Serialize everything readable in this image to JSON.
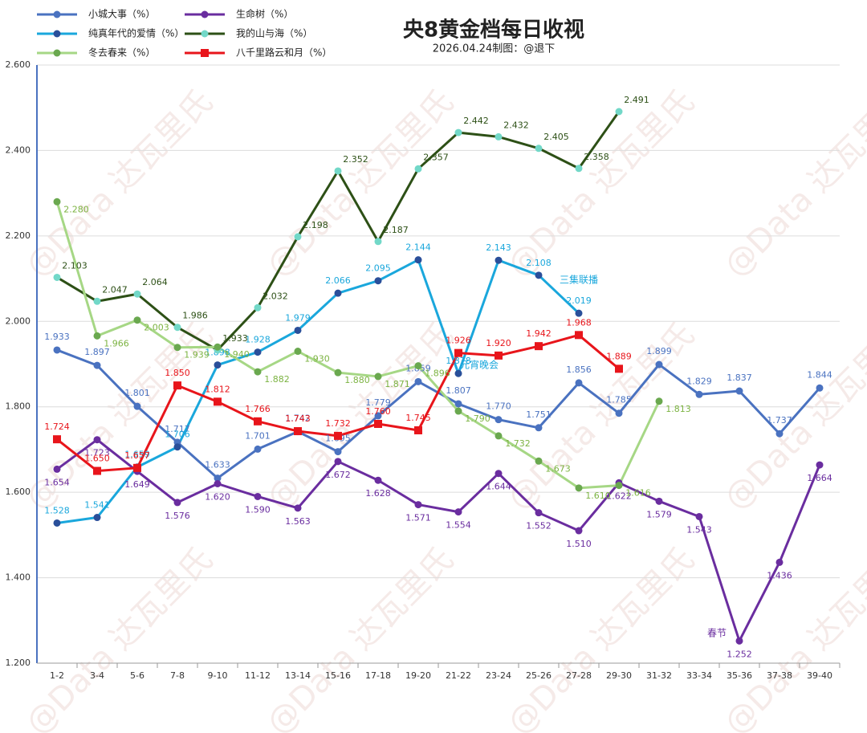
{
  "chart_data": {
    "type": "line",
    "title": "央8黄金档每日收视",
    "subtitle": "2026.04.24制图：@退下",
    "watermark": "@Data 达瓦里氏",
    "categories": [
      "1-2",
      "3-4",
      "5-6",
      "7-8",
      "9-10",
      "11-12",
      "13-14",
      "15-16",
      "17-18",
      "19-20",
      "21-22",
      "23-24",
      "25-26",
      "27-28",
      "29-30",
      "31-32",
      "33-34",
      "35-36",
      "37-38",
      "39-40"
    ],
    "ylim": [
      1.2,
      2.6
    ],
    "yticks": [
      {
        "value": 1.2,
        "label": "1.200"
      },
      {
        "value": 1.4,
        "label": "1.400"
      },
      {
        "value": 1.6,
        "label": "1.600"
      },
      {
        "value": 1.8,
        "label": "1.800"
      },
      {
        "value": 2.0,
        "label": "2.000"
      },
      {
        "value": 2.2,
        "label": "2.200"
      },
      {
        "value": 2.4,
        "label": "2.400"
      },
      {
        "value": 2.6,
        "label": "2.600"
      }
    ],
    "grid": true,
    "legend": "top-left",
    "series": [
      {
        "name": "小城大事（%）",
        "color": "#4a72c0",
        "marker_color": "#4a72c0",
        "marker": "circle",
        "values": [
          1.933,
          1.897,
          1.801,
          1.717,
          1.633,
          1.701,
          1.742,
          1.695,
          1.779,
          1.859,
          1.807,
          1.77,
          1.751,
          1.856,
          1.785,
          1.899,
          1.829,
          1.837,
          1.737,
          1.844
        ],
        "value_labels": [
          "1.933",
          "1.897",
          "1.801",
          "1.717",
          "1.633",
          "1.701",
          "1.742",
          "1.695",
          "1.779",
          "1.859",
          "1.807",
          "1.770",
          "1.751",
          "1.856",
          "1.785",
          "1.899",
          "1.829",
          "1.837",
          "1.737",
          "1.844"
        ]
      },
      {
        "name": "生命树（%）",
        "color": "#6a2d9f",
        "marker_color": "#6a2d9f",
        "marker": "circle",
        "values": [
          1.654,
          1.723,
          1.649,
          1.576,
          1.62,
          1.59,
          1.563,
          1.672,
          1.628,
          1.571,
          1.554,
          1.644,
          1.552,
          1.51,
          1.622,
          1.579,
          1.543,
          1.252,
          1.436,
          1.664
        ],
        "value_labels": [
          "1.654",
          "1.723",
          "1.649",
          "1.576",
          "1.620",
          "1.590",
          "1.563",
          "1.672",
          "1.628",
          "1.571",
          "1.554",
          "1.644",
          "1.552",
          "1.510",
          "1.622",
          "1.579",
          "1.543",
          "1.252",
          "1.436",
          "1.664"
        ]
      },
      {
        "name": "纯真年代的爱情（%）",
        "color": "#1aa7dc",
        "marker_color": "#2a4f9a",
        "marker": "circle",
        "values": [
          1.528,
          1.541,
          1.659,
          1.706,
          1.898,
          1.928,
          1.979,
          2.066,
          2.095,
          2.144,
          1.878,
          2.143,
          2.108,
          2.019,
          null,
          null,
          null,
          null,
          null,
          null
        ],
        "value_labels": [
          "1.528",
          "1.541",
          "1.659",
          "1.706",
          "1.898",
          "1.928",
          "1.979",
          "2.066",
          "2.095",
          "2.144",
          "1.878",
          "2.143",
          "2.108",
          "2.019",
          null,
          null,
          null,
          null,
          null,
          null
        ]
      },
      {
        "name": "我的山与海（%）",
        "color": "#2d5016",
        "marker_color": "#72d8c8",
        "marker": "circle",
        "values": [
          2.103,
          2.047,
          2.064,
          1.986,
          1.933,
          2.032,
          2.198,
          2.352,
          2.187,
          2.357,
          2.442,
          2.432,
          2.405,
          2.358,
          2.491,
          null,
          null,
          null,
          null,
          null
        ],
        "value_labels": [
          "2.103",
          "2.047",
          "2.064",
          "1.986",
          "1.933",
          "2.032",
          "2.198",
          "2.352",
          "2.187",
          "2.357",
          "2.442",
          "2.432",
          "2.405",
          "2.358",
          "2.491",
          null,
          null,
          null,
          null,
          null
        ]
      },
      {
        "name": "冬去春来（%）",
        "color": "#a6d785",
        "marker_color": "#6aa84f",
        "marker": "circle",
        "values": [
          2.28,
          1.966,
          2.003,
          1.939,
          1.94,
          1.882,
          1.93,
          1.88,
          1.871,
          1.896,
          1.79,
          1.732,
          1.673,
          1.61,
          1.616,
          1.813,
          null,
          null,
          null,
          null
        ],
        "value_labels": [
          "2.280",
          "1.966",
          "2.003",
          "1.939",
          "1.940",
          "1.882",
          "1.930",
          "1.880",
          "1.871",
          "1.896",
          "1.790",
          "1.732",
          "1.673",
          "1.610",
          "1.616",
          "1.813",
          null,
          null,
          null,
          null
        ]
      },
      {
        "name": "八千里路云和月（%）",
        "color": "#e8151b",
        "marker_color": "#e8151b",
        "marker": "square",
        "values": [
          1.724,
          1.65,
          1.657,
          1.85,
          1.812,
          1.766,
          1.743,
          1.732,
          1.76,
          1.745,
          1.926,
          1.92,
          1.942,
          1.968,
          1.889,
          null,
          null,
          null,
          null,
          null
        ],
        "value_labels": [
          "1.724",
          "1.650",
          "1.657",
          "1.850",
          "1.812",
          "1.766",
          "1.743",
          "1.732",
          "1.760",
          "1.745",
          "1.926",
          "1.920",
          "1.942",
          "1.968",
          "1.889",
          null,
          null,
          null,
          null,
          null
        ]
      }
    ],
    "annotations": [
      {
        "text": "元宵晚会",
        "color": "#1aa7dc"
      },
      {
        "text": "三集联播",
        "color": "#1aa7dc"
      },
      {
        "text": "春节",
        "color": "#6a2d9f"
      }
    ]
  }
}
